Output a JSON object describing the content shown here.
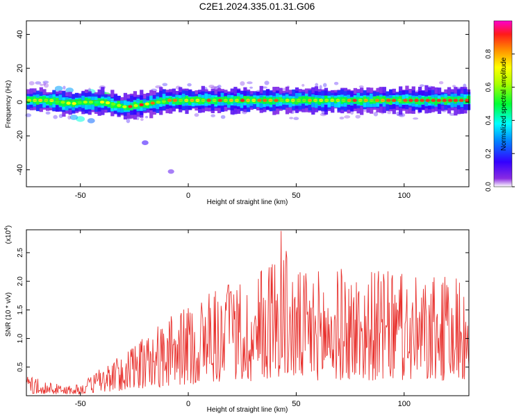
{
  "title": "C2E1.2024.335.01.31.G06",
  "chart_data": [
    {
      "type": "heatmap",
      "xlabel": "Height of straight line (km)",
      "ylabel": "Frequency (Hz)",
      "xlim": [
        -75,
        130
      ],
      "ylim": [
        -50,
        48
      ],
      "xticks": [
        -50,
        0,
        50,
        100
      ],
      "yticks": [
        -40,
        -20,
        0,
        20,
        40
      ],
      "band_center": [
        [
          -75,
          1
        ],
        [
          -65,
          1
        ],
        [
          -55,
          -1
        ],
        [
          -50,
          0
        ],
        [
          -40,
          0
        ],
        [
          -30,
          -3
        ],
        [
          -20,
          -1
        ],
        [
          -10,
          1
        ],
        [
          0,
          1
        ],
        [
          20,
          1
        ],
        [
          40,
          1
        ],
        [
          60,
          1
        ],
        [
          80,
          1
        ],
        [
          100,
          1
        ],
        [
          130,
          1
        ]
      ],
      "band_halfwidth": 4,
      "blobs": [
        [
          -45,
          -11,
          0.25
        ],
        [
          -50,
          -10,
          0.4
        ],
        [
          -53,
          -9,
          0.3
        ],
        [
          -60,
          8,
          0.3
        ],
        [
          -55,
          7,
          0.3
        ],
        [
          -45,
          6,
          0.4
        ],
        [
          -40,
          5,
          0.4
        ],
        [
          -38,
          4,
          0.5
        ],
        [
          -20,
          -24,
          0.15
        ],
        [
          -8,
          -41,
          0.1
        ]
      ],
      "colorbar": {
        "label": "Normalized spectral amplitude",
        "range": [
          0,
          1
        ],
        "ticks": [
          "0.0",
          "0.2",
          "0.4",
          "0.6",
          "0.8"
        ]
      }
    },
    {
      "type": "line",
      "xlabel": "Height of straight line (km)",
      "ylabel": "SNR (10 * v/v)",
      "y_multiplier": "(x10",
      "y_multiplier_exp": "4",
      "xlim": [
        -75,
        130
      ],
      "ylim": [
        0,
        2.9
      ],
      "xticks": [
        -50,
        0,
        50,
        100
      ],
      "yticks": [
        "0.5",
        "1.0",
        "1.5",
        "2.0",
        "2.5"
      ],
      "color": "#e8312d",
      "envelope": [
        [
          -75,
          0.35
        ],
        [
          -60,
          0.2
        ],
        [
          -50,
          0.2
        ],
        [
          -40,
          0.5
        ],
        [
          -30,
          0.75
        ],
        [
          -20,
          1.05
        ],
        [
          -10,
          1.35
        ],
        [
          0,
          1.6
        ],
        [
          10,
          1.9
        ],
        [
          30,
          2.0
        ],
        [
          43,
          2.85
        ],
        [
          50,
          2.2
        ],
        [
          70,
          2.25
        ],
        [
          90,
          2.2
        ],
        [
          110,
          2.05
        ],
        [
          130,
          2.15
        ]
      ]
    }
  ]
}
